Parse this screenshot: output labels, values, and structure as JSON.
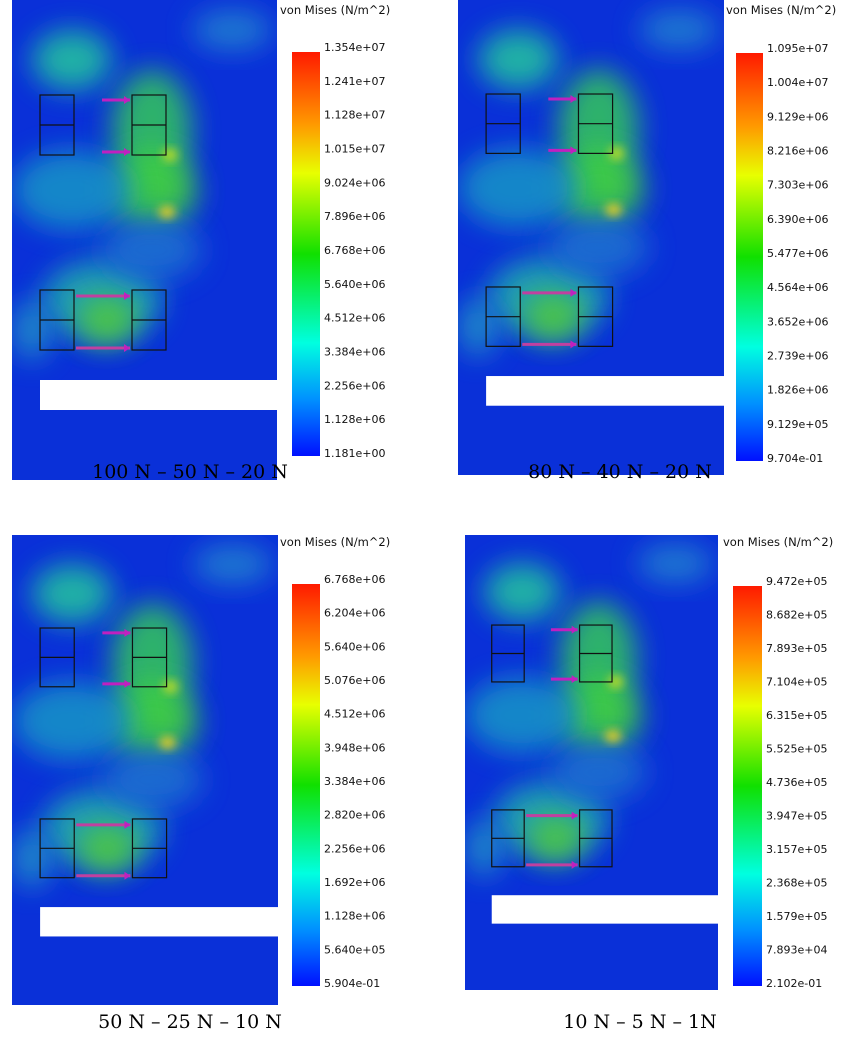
{
  "panels": [
    {
      "legend_title": "von Mises (N/m^2)",
      "scale_labels": [
        "1.354e+07",
        "1.241e+07",
        "1.128e+07",
        "1.015e+07",
        "9.024e+06",
        "7.896e+06",
        "6.768e+06",
        "5.640e+06",
        "4.512e+06",
        "3.384e+06",
        "2.256e+06",
        "1.128e+06",
        "1.181e+00"
      ],
      "caption": "100 N – 50 N – 20 N"
    },
    {
      "legend_title": "von Mises (N/m^2)",
      "scale_labels": [
        "1.095e+07",
        "1.004e+07",
        "9.129e+06",
        "8.216e+06",
        "7.303e+06",
        "6.390e+06",
        "5.477e+06",
        "4.564e+06",
        "3.652e+06",
        "2.739e+06",
        "1.826e+06",
        "9.129e+05",
        "9.704e-01"
      ],
      "caption": "80 N – 40 N – 20 N"
    },
    {
      "legend_title": "von Mises (N/m^2)",
      "scale_labels": [
        "6.768e+06",
        "6.204e+06",
        "5.640e+06",
        "5.076e+06",
        "4.512e+06",
        "3.948e+06",
        "3.384e+06",
        "2.820e+06",
        "2.256e+06",
        "1.692e+06",
        "1.128e+06",
        "5.640e+05",
        "5.904e-01"
      ],
      "caption": "50 N – 25 N – 10 N"
    },
    {
      "legend_title": "von Mises (N/m^2)",
      "scale_labels": [
        "9.472e+05",
        "8.682e+05",
        "7.893e+05",
        "7.104e+05",
        "6.315e+05",
        "5.525e+05",
        "4.736e+05",
        "3.947e+05",
        "3.157e+05",
        "2.368e+05",
        "1.579e+05",
        "7.893e+04",
        "2.102e-01"
      ],
      "caption": "10 N – 5 N – 1N"
    }
  ]
}
